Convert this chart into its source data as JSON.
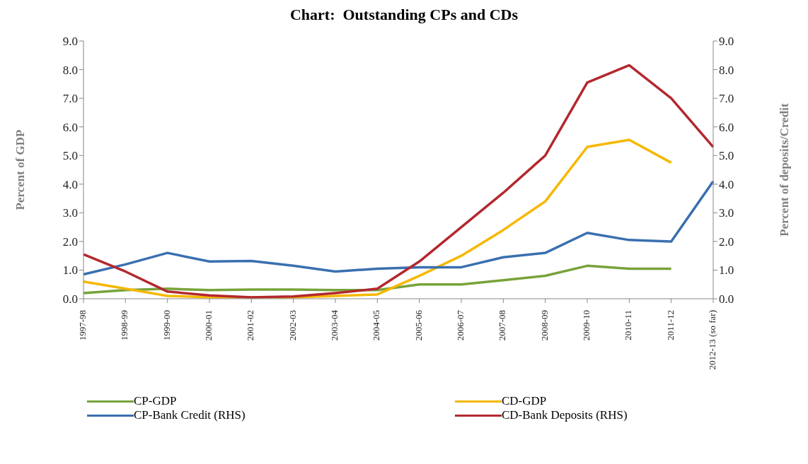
{
  "chart_data": {
    "type": "line",
    "title": "Chart:  Outstanding CPs and CDs",
    "ylabel": "Percent  of GDP",
    "y2label": "Percent  of deposits/Credit",
    "categories": [
      "1997-98",
      "1998-99",
      "1999-00",
      "2000-01",
      "2001-02",
      "2002-03",
      "2003-04",
      "2004-05",
      "2005-06",
      "2006-07",
      "2007-08",
      "2008-09",
      "2009-10",
      "2010-11",
      "2011-12",
      "2012-13 (so far)"
    ],
    "series": [
      {
        "name": "CP-GDP",
        "color": "#77a33a",
        "values": [
          0.2,
          0.3,
          0.35,
          0.3,
          0.32,
          0.32,
          0.3,
          0.3,
          0.5,
          0.5,
          0.65,
          0.8,
          1.15,
          1.05,
          1.05,
          null
        ]
      },
      {
        "name": "CD-GDP",
        "color": "#f5b800",
        "values": [
          0.6,
          0.35,
          0.1,
          0.05,
          0.05,
          0.05,
          0.1,
          0.15,
          0.8,
          1.5,
          2.4,
          3.4,
          5.3,
          5.55,
          4.75,
          null
        ]
      },
      {
        "name": "CP-Bank Credit (RHS)",
        "color": "#3a6fb0",
        "axis": "y2",
        "values": [
          0.85,
          1.2,
          1.6,
          1.3,
          1.32,
          1.15,
          0.95,
          1.05,
          1.1,
          1.1,
          1.45,
          1.6,
          2.3,
          2.05,
          2.0,
          4.1
        ]
      },
      {
        "name": "CD-Bank Deposits (RHS)",
        "color": "#b3282e",
        "axis": "y2",
        "values": [
          1.55,
          0.95,
          0.25,
          0.12,
          0.05,
          0.08,
          0.2,
          0.35,
          1.3,
          2.5,
          3.7,
          5.0,
          7.55,
          8.15,
          7.0,
          5.3
        ]
      }
    ],
    "ylim": [
      0,
      9
    ],
    "yticks": [
      {
        "value": 0,
        "label": "0.0"
      },
      {
        "value": 1,
        "label": "1.0"
      },
      {
        "value": 2,
        "label": "2.0"
      },
      {
        "value": 3,
        "label": "3.0"
      },
      {
        "value": 4,
        "label": "4.0"
      },
      {
        "value": 5,
        "label": "5.0"
      },
      {
        "value": 6,
        "label": "6.0"
      },
      {
        "value": 7,
        "label": "7.0"
      },
      {
        "value": 8,
        "label": "8.0"
      },
      {
        "value": 9,
        "label": "9.0"
      }
    ],
    "y2lim": [
      0,
      9
    ],
    "y2ticks": [
      {
        "value": 0,
        "label": "0.0"
      },
      {
        "value": 1,
        "label": "1.0"
      },
      {
        "value": 2,
        "label": "2.0"
      },
      {
        "value": 3,
        "label": "3.0"
      },
      {
        "value": 4,
        "label": "4.0"
      },
      {
        "value": 5,
        "label": "5.0"
      },
      {
        "value": 6,
        "label": "6.0"
      },
      {
        "value": 7,
        "label": "7.0"
      },
      {
        "value": 8,
        "label": "8.0"
      },
      {
        "value": 9,
        "label": "9.0"
      }
    ],
    "grid": false,
    "legend": "bottom",
    "marker": "none",
    "line_style": "solid"
  }
}
